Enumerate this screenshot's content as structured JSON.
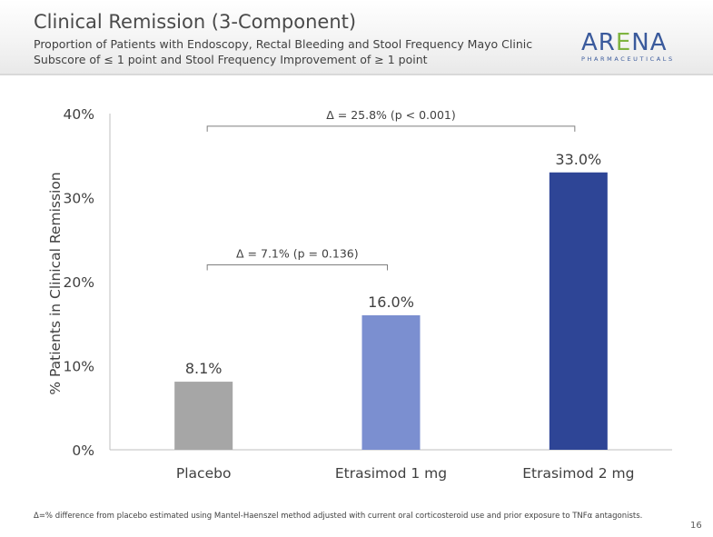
{
  "header": {
    "title": "Clinical Remission (3-Component)",
    "subtitle_line1": "Proportion of Patients with Endoscopy, Rectal Bleeding and Stool Frequency Mayo Clinic",
    "subtitle_line2": "Subscore of ≤ 1 point and Stool Frequency Improvement of ≥ 1 point"
  },
  "logo": {
    "word_a": "AR",
    "word_e": "E",
    "word_b": "NA",
    "tagline": "PHARMACEUTICALS"
  },
  "chart_data": {
    "type": "bar",
    "title": "",
    "xlabel": "",
    "ylabel": "% Patients in Clinical Remission",
    "categories": [
      "Placebo",
      "Etrasimod 1 mg",
      "Etrasimod 2 mg"
    ],
    "values": [
      8.1,
      16.0,
      33.0
    ],
    "value_labels": [
      "8.1%",
      "16.0%",
      "33.0%"
    ],
    "bar_colors": [
      "#a6a6a6",
      "#7b8fd0",
      "#2e4596"
    ],
    "ylim": [
      0,
      40
    ],
    "yticks": [
      0,
      10,
      20,
      30,
      40
    ],
    "ytick_labels": [
      "0%",
      "10%",
      "20%",
      "30%",
      "40%"
    ],
    "grid": false,
    "legend": "none",
    "comparisons": [
      {
        "from": 0,
        "to": 1,
        "label": "Δ = 7.1% (p = 0.136)",
        "level": 22
      },
      {
        "from": 0,
        "to": 2,
        "label": "Δ = 25.8% (p < 0.001)",
        "level": 38.5
      }
    ]
  },
  "footnote": "Δ=% difference from placebo estimated using Mantel-Haenszel method adjusted with current oral corticosteroid use and prior exposure to TNFα antagonists.",
  "slide_number": "16"
}
